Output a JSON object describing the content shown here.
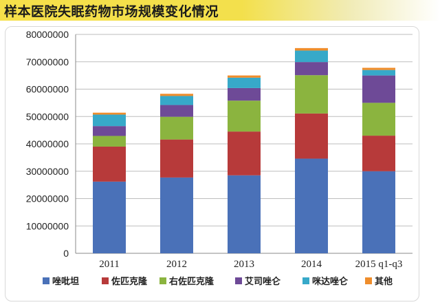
{
  "title": "样本医院失眠药物市场规模变化情况",
  "chart_data": {
    "type": "bar",
    "stacked": true,
    "title": "",
    "xlabel": "",
    "ylabel": "",
    "categories": [
      "2011",
      "2012",
      "2013",
      "2014",
      "2015 q1-q3"
    ],
    "ylim": [
      0,
      80000000
    ],
    "yticks": [
      "0",
      "10000000",
      "20000000",
      "30000000",
      "40000000",
      "50000000",
      "60000000",
      "70000000",
      "80000000"
    ],
    "grid": true,
    "legend_position": "bottom",
    "series": [
      {
        "name": "唑吡坦",
        "color": "#4a71b8",
        "values": [
          26200000,
          27700000,
          28500000,
          34600000,
          30000000
        ]
      },
      {
        "name": "佐匹克隆",
        "color": "#b73a3a",
        "values": [
          12800000,
          13900000,
          16000000,
          16500000,
          13000000
        ]
      },
      {
        "name": "右佐匹克隆",
        "color": "#8bb43f",
        "values": [
          3900000,
          8300000,
          11300000,
          14000000,
          12000000
        ]
      },
      {
        "name": "艾司唑仑",
        "color": "#6e4a97",
        "values": [
          3600000,
          4300000,
          4600000,
          4800000,
          10000000
        ]
      },
      {
        "name": "咪达唑仑",
        "color": "#37a9c9",
        "values": [
          4200000,
          3300000,
          3800000,
          4200000,
          2000000
        ]
      },
      {
        "name": "其他",
        "color": "#ef8d2c",
        "values": [
          700000,
          800000,
          800000,
          900000,
          800000
        ]
      }
    ]
  }
}
